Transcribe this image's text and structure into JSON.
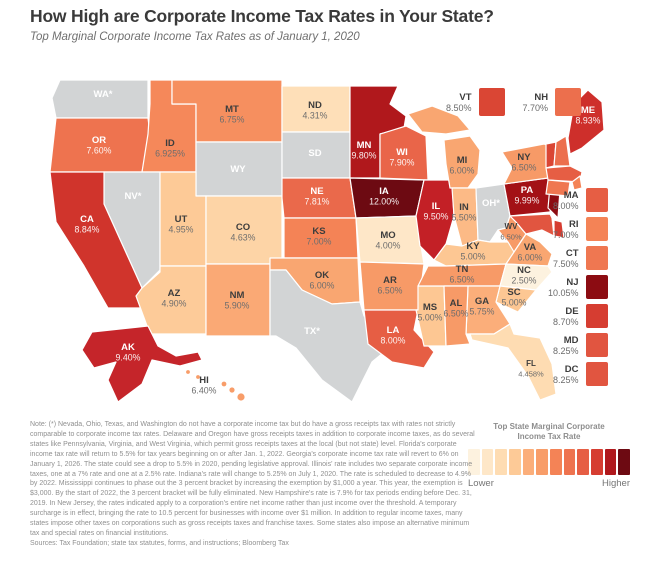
{
  "header": {
    "title": "How High are Corporate Income Tax Rates in Your State?",
    "subtitle": "Top Marginal Corporate Income Tax Rates as of January 1, 2020"
  },
  "map": {
    "no_tax_color": "#d2d4d5",
    "states": [
      {
        "code": "WA",
        "label": "WA*",
        "value": "",
        "color": "#d2d4d5",
        "text": "light"
      },
      {
        "code": "OR",
        "label": "OR",
        "value": "7.60%",
        "color": "#ee734f",
        "text": "light"
      },
      {
        "code": "CA",
        "label": "CA",
        "value": "8.84%",
        "color": "#d0342c",
        "text": "light"
      },
      {
        "code": "NV",
        "label": "NV*",
        "value": "",
        "color": "#d2d4d5",
        "text": "light"
      },
      {
        "code": "ID",
        "label": "ID",
        "value": "6.925%",
        "color": "#f5885a",
        "text": "dark"
      },
      {
        "code": "MT",
        "label": "MT",
        "value": "6.75%",
        "color": "#f68f5f",
        "text": "dark"
      },
      {
        "code": "WY",
        "label": "WY",
        "value": "",
        "color": "#d2d4d5",
        "text": "light"
      },
      {
        "code": "UT",
        "label": "UT",
        "value": "4.95%",
        "color": "#fdca97",
        "text": "dark"
      },
      {
        "code": "CO",
        "label": "CO",
        "value": "4.63%",
        "color": "#fdd4a6",
        "text": "dark"
      },
      {
        "code": "AZ",
        "label": "AZ",
        "value": "4.90%",
        "color": "#fdcb99",
        "text": "dark"
      },
      {
        "code": "NM",
        "label": "NM",
        "value": "5.90%",
        "color": "#faa975",
        "text": "dark"
      },
      {
        "code": "ND",
        "label": "ND",
        "value": "4.31%",
        "color": "#fedfb8",
        "text": "dark"
      },
      {
        "code": "SD",
        "label": "SD",
        "value": "",
        "color": "#d2d4d5",
        "text": "light"
      },
      {
        "code": "NE",
        "label": "NE",
        "value": "7.81%",
        "color": "#ea694b",
        "text": "light"
      },
      {
        "code": "KS",
        "label": "KS",
        "value": "7.00%",
        "color": "#f48356",
        "text": "dark"
      },
      {
        "code": "OK",
        "label": "OK",
        "value": "6.00%",
        "color": "#f9a671",
        "text": "dark"
      },
      {
        "code": "TX",
        "label": "TX*",
        "value": "",
        "color": "#d2d4d5",
        "text": "light"
      },
      {
        "code": "MN",
        "label": "MN",
        "value": "9.80%",
        "color": "#b0181c",
        "text": "light"
      },
      {
        "code": "IA",
        "label": "IA",
        "value": "12.00%",
        "color": "#6d0a12",
        "text": "light"
      },
      {
        "code": "MO",
        "label": "MO",
        "value": "4.00%",
        "color": "#fee7c8",
        "text": "dark"
      },
      {
        "code": "AR",
        "label": "AR",
        "value": "6.50%",
        "color": "#f79a67",
        "text": "dark"
      },
      {
        "code": "LA",
        "label": "LA",
        "value": "8.00%",
        "color": "#e65e44",
        "text": "light"
      },
      {
        "code": "WI",
        "label": "WI",
        "value": "7.90%",
        "color": "#e96549",
        "text": "light"
      },
      {
        "code": "IL",
        "label": "IL",
        "value": "9.50%",
        "color": "#c32026",
        "text": "light"
      },
      {
        "code": "MS",
        "label": "MS",
        "value": "5.00%",
        "color": "#fdc793",
        "text": "dark"
      },
      {
        "code": "MI",
        "label": "MI",
        "value": "6.00%",
        "color": "#f9a671",
        "text": "dark"
      },
      {
        "code": "IN",
        "label": "IN",
        "value": "5.50%",
        "color": "#fcba86",
        "text": "dark"
      },
      {
        "code": "OH",
        "label": "OH*",
        "value": "",
        "color": "#d2d4d5",
        "text": "light"
      },
      {
        "code": "KY",
        "label": "KY",
        "value": "5.00%",
        "color": "#fdc793",
        "text": "dark"
      },
      {
        "code": "TN",
        "label": "TN",
        "value": "6.50%",
        "color": "#f79a67",
        "text": "dark"
      },
      {
        "code": "WV",
        "label": "WV",
        "value": "6.50%",
        "color": "#f79a67",
        "text": "dark",
        "small": true
      },
      {
        "code": "VA",
        "label": "VA",
        "value": "6.00%",
        "color": "#f9a671",
        "text": "dark"
      },
      {
        "code": "NC",
        "label": "NC",
        "value": "2.50%",
        "color": "#fdf2df",
        "text": "dark"
      },
      {
        "code": "SC",
        "label": "SC",
        "value": "5.00%",
        "color": "#fdc793",
        "text": "dark"
      },
      {
        "code": "GA",
        "label": "GA",
        "value": "5.75%",
        "color": "#fbae7a",
        "text": "dark"
      },
      {
        "code": "AL",
        "label": "AL",
        "value": "6.50%",
        "color": "#f79a67",
        "text": "dark"
      },
      {
        "code": "FL",
        "label": "FL",
        "value": "4.458%",
        "color": "#fedcb2",
        "text": "dark",
        "small": true
      },
      {
        "code": "PA",
        "label": "PA",
        "value": "9.99%",
        "color": "#a31116",
        "text": "light"
      },
      {
        "code": "NY",
        "label": "NY",
        "value": "6.50%",
        "color": "#f79a67",
        "text": "dark"
      },
      {
        "code": "ME",
        "label": "ME",
        "value": "8.93%",
        "color": "#ce2f2b",
        "text": "light"
      },
      {
        "code": "VT",
        "label": "VT",
        "value": "8.50%",
        "color": "#da4634",
        "text": "dark"
      },
      {
        "code": "NH",
        "label": "NH",
        "value": "7.70%",
        "color": "#ec6f4d",
        "text": "dark"
      },
      {
        "code": "MA",
        "label": "MA",
        "value": "8.00%",
        "color": "#e65e44",
        "text": "dark"
      },
      {
        "code": "RI",
        "label": "RI",
        "value": "7.00%",
        "color": "#f48356",
        "text": "dark"
      },
      {
        "code": "CT",
        "label": "CT",
        "value": "7.50%",
        "color": "#ef7751",
        "text": "dark"
      },
      {
        "code": "NJ",
        "label": "NJ",
        "value": "10.05%",
        "color": "#8c0c12",
        "text": "light"
      },
      {
        "code": "DE",
        "label": "DE",
        "value": "8.70%",
        "color": "#d63d31",
        "text": "light"
      },
      {
        "code": "MD",
        "label": "MD",
        "value": "8.25%",
        "color": "#e15540",
        "text": "light"
      },
      {
        "code": "AK",
        "label": "AK",
        "value": "9.40%",
        "color": "#c5252a",
        "text": "light"
      },
      {
        "code": "HI",
        "label": "HI",
        "value": "6.40%",
        "color": "#f89d69",
        "text": "dark"
      }
    ]
  },
  "callouts_top": [
    {
      "code": "VT",
      "value": "8.50%",
      "color": "#da4634"
    },
    {
      "code": "NH",
      "value": "7.70%",
      "color": "#ec6f4d"
    }
  ],
  "callouts_right": [
    {
      "code": "MA",
      "value": "8.00%",
      "color": "#e65e44"
    },
    {
      "code": "RI",
      "value": "7.00%",
      "color": "#f48356"
    },
    {
      "code": "CT",
      "value": "7.50%",
      "color": "#ef7751"
    },
    {
      "code": "NJ",
      "value": "10.05%",
      "color": "#8c0c12"
    },
    {
      "code": "DE",
      "value": "8.70%",
      "color": "#d63d31"
    },
    {
      "code": "MD",
      "value": "8.25%",
      "color": "#e15540"
    },
    {
      "code": "DC",
      "value": "8.25%",
      "color": "#e15540"
    }
  ],
  "legend": {
    "title_line1": "Top State Marginal Corporate",
    "title_line2": "Income Tax Rate",
    "low_label": "Lower",
    "high_label": "Higher",
    "colors": [
      "#fdf2df",
      "#fee7c8",
      "#fedcb2",
      "#fdca97",
      "#fbae7a",
      "#f89d69",
      "#f48356",
      "#ee734f",
      "#e65e44",
      "#d63d31",
      "#b0181c",
      "#6d0a12"
    ]
  },
  "note": "Note: (*) Nevada, Ohio, Texas, and Washington do not have a corporate income tax but do have a gross receipts tax with rates not strictly comparable to corporate income tax rates. Delaware and Oregon have gross receipts taxes in addition to corporate income taxes, as do several states like Pennsylvania, Virginia, and West Virginia, which permit gross receipts taxes at the local (but not state) level. Florida's corporate income tax rate will return to 5.5% for tax years beginning on or after Jan. 1, 2022. Georgia's corporate income tax rate will revert to 6% on January 1, 2026. The state could see a drop to 5.5% in 2020, pending legislative approval. Illinois' rate includes two separate corporate income taxes, one at a 7% rate and one at a 2.5% rate. Indiana's rate will change to 5.25% on July 1, 2020. The rate is scheduled to decrease to 4.9% by 2022. Mississippi continues to phase out the 3 percent bracket by increasing the exemption by $1,000 a year. This year, the exemption is $3,000. By the start of 2022, the 3 percent bracket will be fully eliminated. New Hampshire's rate is 7.9% for tax periods ending before Dec. 31, 2019. In New Jersey, the rates indicated apply to a corporation's entire net income rather than just income over the threshold. A temporary surcharge is in effect, bringing the rate to 10.5 percent for businesses with income over $1 million. In addition to regular income taxes, many states impose other taxes on corporations such as gross receipts taxes and franchise taxes. Some states also impose an alternative minimum tax and special rates on financial institutions.",
  "sources": "Sources: Tax Foundation; state tax statutes, forms, and instructions; Bloomberg Tax",
  "chart_data": {
    "type": "heatmap",
    "title": "How High are Corporate Income Tax Rates in Your State?",
    "subtitle": "Top Marginal Corporate Income Tax Rates as of January 1, 2020",
    "unit": "percent",
    "legend": {
      "title": "Top State Marginal Corporate Income Tax Rate",
      "low": "Lower",
      "high": "Higher"
    },
    "categories": [
      "AK",
      "AL",
      "AR",
      "AZ",
      "CA",
      "CO",
      "CT",
      "DC",
      "DE",
      "FL",
      "GA",
      "HI",
      "IA",
      "ID",
      "IL",
      "IN",
      "KS",
      "KY",
      "LA",
      "MA",
      "MD",
      "ME",
      "MI",
      "MN",
      "MO",
      "MS",
      "MT",
      "NC",
      "ND",
      "NE",
      "NH",
      "NJ",
      "NM",
      "NY",
      "OK",
      "OR",
      "PA",
      "RI",
      "SC",
      "TN",
      "UT",
      "VA",
      "VT",
      "WI",
      "WV"
    ],
    "values": [
      9.4,
      6.5,
      6.5,
      4.9,
      8.84,
      4.63,
      7.5,
      8.25,
      8.7,
      4.458,
      5.75,
      6.4,
      12.0,
      6.925,
      9.5,
      5.5,
      7.0,
      5.0,
      8.0,
      8.0,
      8.25,
      8.93,
      6.0,
      9.8,
      4.0,
      5.0,
      6.75,
      2.5,
      4.31,
      7.81,
      7.7,
      10.05,
      5.9,
      6.5,
      6.0,
      7.6,
      9.99,
      7.0,
      5.0,
      6.5,
      4.95,
      6.0,
      8.5,
      7.9,
      6.5
    ],
    "no_corporate_income_tax": [
      "NV",
      "OH",
      "SD",
      "TX",
      "WA",
      "WY"
    ]
  }
}
